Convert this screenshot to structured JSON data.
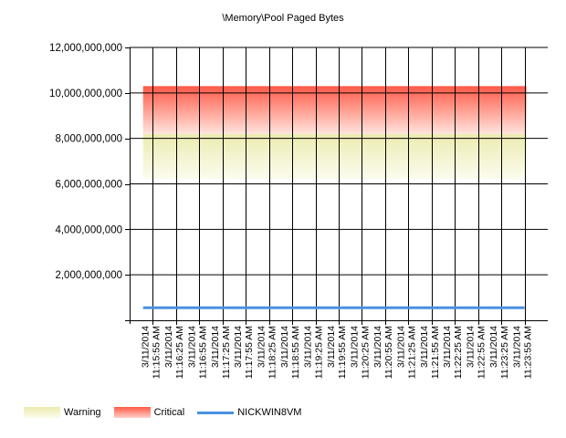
{
  "chart_data": {
    "type": "line",
    "title": "\\Memory\\Pool Paged Bytes",
    "xlabel": "",
    "ylabel": "",
    "ylim": [
      0,
      12000000000
    ],
    "y_ticks": [
      0,
      2000000000,
      4000000000,
      6000000000,
      8000000000,
      10000000000,
      12000000000
    ],
    "y_tick_labels": [
      "",
      "2,000,000,000",
      "4,000,000,000",
      "6,000,000,000",
      "8,000,000,000",
      "10,000,000,000",
      "12,000,000,000"
    ],
    "x_date": "3/11/2014",
    "categories": [
      "11:15:55 AM",
      "11:16:25 AM",
      "11:16:55 AM",
      "11:17:25 AM",
      "11:17:55 AM",
      "11:18:25 AM",
      "11:18:55 AM",
      "11:19:25 AM",
      "11:19:55 AM",
      "11:20:25 AM",
      "11:20:55 AM",
      "11:21:25 AM",
      "11:21:55 AM",
      "11:22:25 AM",
      "11:22:55 AM",
      "11:23:25 AM",
      "11:23:55 AM"
    ],
    "grid": true,
    "legend_position": "bottom-left",
    "bands": [
      {
        "name": "Warning",
        "from": 6200000000,
        "to": 8200000000,
        "color": "#ecebb0"
      },
      {
        "name": "Critical",
        "from": 8200000000,
        "to": 10300000000,
        "color": "#ff5a47"
      }
    ],
    "series": [
      {
        "name": "NICKWIN8VM",
        "color": "#4a90e2",
        "values": [
          550000000,
          550000000,
          550000000,
          550000000,
          550000000,
          550000000,
          550000000,
          550000000,
          550000000,
          550000000,
          550000000,
          550000000,
          550000000,
          550000000,
          550000000,
          550000000,
          550000000
        ]
      }
    ]
  },
  "legend": {
    "warning": "Warning",
    "critical": "Critical",
    "series": "NICKWIN8VM"
  }
}
